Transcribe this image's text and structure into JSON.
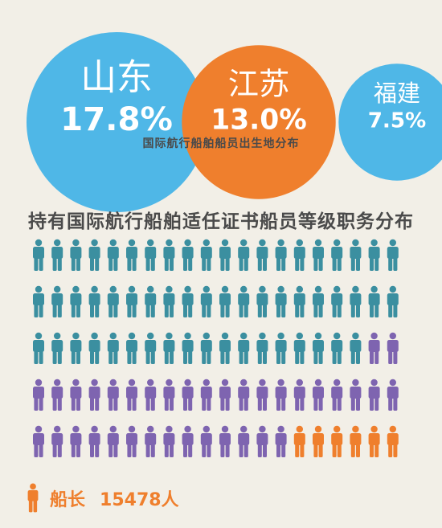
{
  "origin": {
    "caption": "国际航行船舶船员出生地分布",
    "chart_data": {
      "type": "bubble",
      "categories": [
        "山东",
        "江苏",
        "福建"
      ],
      "values": [
        17.8,
        13.0,
        7.5
      ],
      "value_labels": [
        "17.8%",
        "13.0%",
        "7.5%"
      ],
      "unit": "%",
      "colors": [
        "#4fb7e7",
        "#ef7f2d",
        "#4fb7e7"
      ]
    }
  },
  "rank": {
    "title": "持有国际航行船舶适任证书船员等级职务分布",
    "chart_data": {
      "type": "pictogram",
      "grid": {
        "rows": 5,
        "cols": 20
      },
      "series": [
        {
          "color": "#3b8fa0",
          "count": 58
        },
        {
          "color": "#7e64b0",
          "count": 36
        },
        {
          "name": "船长",
          "color": "#ef7f2d",
          "count": 6,
          "value": 15478,
          "unit": "人"
        }
      ]
    },
    "legend": {
      "label": "船长",
      "value": "15478人"
    }
  }
}
